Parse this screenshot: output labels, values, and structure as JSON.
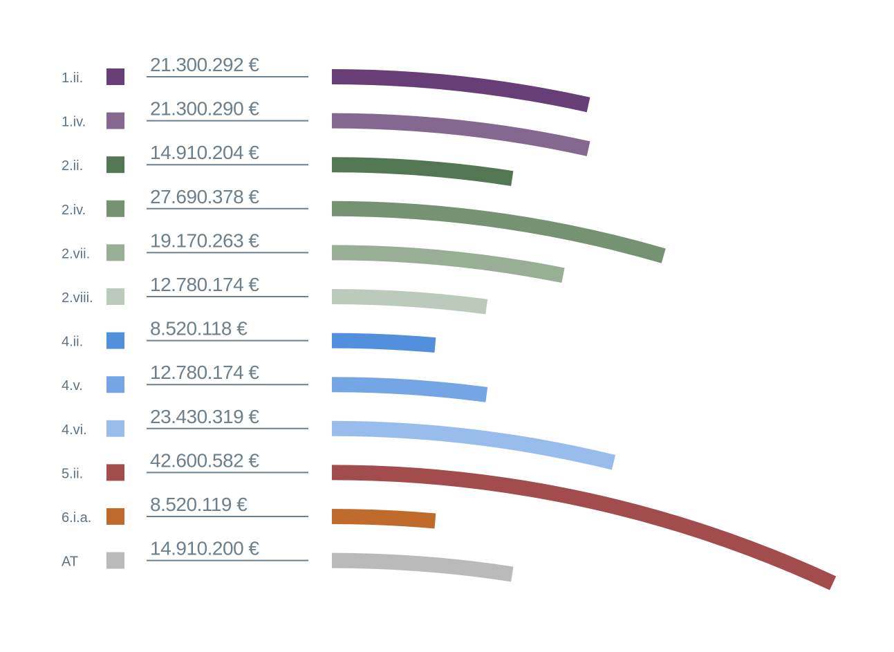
{
  "chart_data": {
    "type": "radial-bar",
    "categories": [
      "1.ii.",
      "1.iv.",
      "2.ii.",
      "2.iv.",
      "2.vii.",
      "2.viii.",
      "4.ii.",
      "4.v.",
      "4.vi.",
      "5.ii.",
      "6.i.a.",
      "AT"
    ],
    "values": [
      21300292,
      21300290,
      14910204,
      27690378,
      19170263,
      12780174,
      8520118,
      12780174,
      23430319,
      42600582,
      8520119,
      14910200
    ],
    "value_labels": [
      "21.300.292 €",
      "21.300.290 €",
      "14.910.204 €",
      "27.690.378 €",
      "19.170.263 €",
      "12.780.174 €",
      "8.520.118 €",
      "12.780.174 €",
      "23.430.319 €",
      "42.600.582 €",
      "8.520.119 €",
      "14.910.200 €"
    ],
    "colors": [
      "#673f76",
      "#84688f",
      "#527752",
      "#759272",
      "#98ae95",
      "#bccabb",
      "#5290de",
      "#74a5e4",
      "#98bdec",
      "#a24c4e",
      "#c06b2b",
      "#bababa"
    ]
  }
}
